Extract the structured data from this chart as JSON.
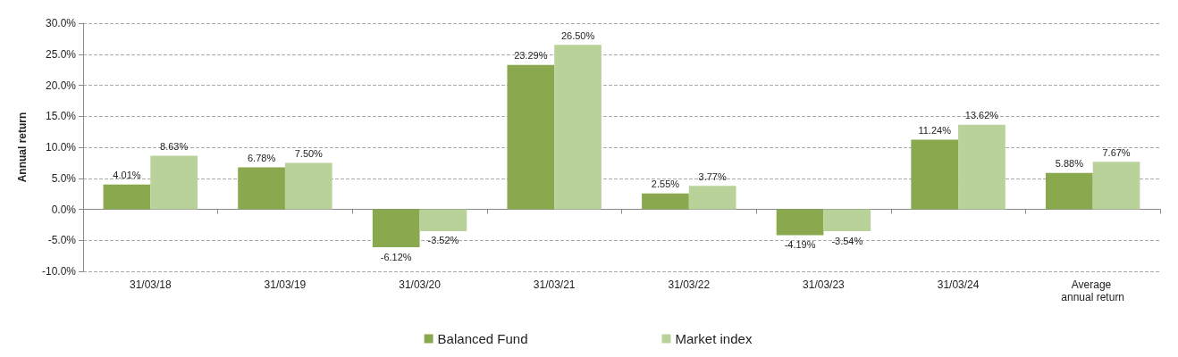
{
  "chart_data": {
    "type": "bar",
    "ylabel": "Annual return",
    "categories": [
      "31/03/18",
      "31/03/19",
      "31/03/20",
      "31/03/21",
      "31/03/22",
      "31/03/23",
      "31/03/24",
      "Average annual return"
    ],
    "series": [
      {
        "name": "Balanced Fund",
        "color": "#8aa84e",
        "values": [
          4.01,
          6.78,
          -6.12,
          23.29,
          2.55,
          -4.19,
          11.24,
          5.88
        ],
        "value_labels": [
          "4.01%",
          "6.78%",
          "-6.12%",
          "23.29%",
          "2.55%",
          "-4.19%",
          "11.24%",
          "5.88%"
        ]
      },
      {
        "name": "Market index",
        "color": "#b9d29a",
        "values": [
          8.63,
          7.5,
          -3.52,
          26.5,
          3.77,
          -3.54,
          13.62,
          7.67
        ],
        "value_labels": [
          "8.63%",
          "7.50%",
          "-3.52%",
          "26.50%",
          "3.77%",
          "-3.54%",
          "13.62%",
          "7.67%"
        ]
      }
    ],
    "ylim": [
      -10,
      30
    ],
    "yticks": [
      {
        "value": -10,
        "label": "-10.0%"
      },
      {
        "value": -5,
        "label": "-5.0%"
      },
      {
        "value": 0,
        "label": "0.0%"
      },
      {
        "value": 5,
        "label": "5.0%"
      },
      {
        "value": 10,
        "label": "10.0%"
      },
      {
        "value": 15,
        "label": "15.0%"
      },
      {
        "value": 20,
        "label": "20.0%"
      },
      {
        "value": 25,
        "label": "25.0%"
      },
      {
        "value": 30,
        "label": "30.0%"
      }
    ],
    "grid": "y",
    "legend": "bottom"
  }
}
